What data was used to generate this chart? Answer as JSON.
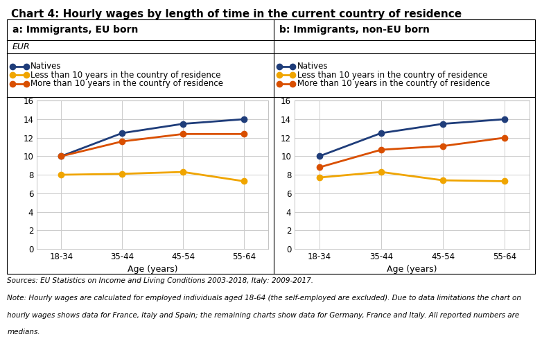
{
  "title": "Chart 4: Hourly wages by length of time in the current country of residence",
  "subtitle_left": "a: Immigrants, EU born",
  "subtitle_right": "b: Immigrants, non-EU born",
  "ylabel": "EUR",
  "xlabel": "Age (years)",
  "x_labels": [
    "18-34",
    "35-44",
    "45-54",
    "55-64"
  ],
  "ylim": [
    0,
    16
  ],
  "yticks": [
    0,
    2,
    4,
    6,
    8,
    10,
    12,
    14,
    16
  ],
  "panel_a": {
    "natives": [
      10.0,
      12.5,
      13.5,
      14.0
    ],
    "less_10": [
      8.0,
      8.1,
      8.3,
      7.3
    ],
    "more_10": [
      10.0,
      11.6,
      12.4,
      12.4
    ]
  },
  "panel_b": {
    "natives": [
      10.0,
      12.5,
      13.5,
      14.0
    ],
    "less_10": [
      7.7,
      8.3,
      7.4,
      7.3
    ],
    "more_10": [
      8.8,
      10.7,
      11.1,
      12.0
    ]
  },
  "colors": {
    "natives": "#1f3d7a",
    "less_10": "#f0a500",
    "more_10": "#d94f00"
  },
  "legend_labels": [
    "Natives",
    "Less than 10 years in the country of residence",
    "More than 10 years in the country of residence"
  ],
  "source_text_line1": "Sources: EU Statistics on Income and Living Conditions 2003-2018, Italy: 2009-2017.",
  "source_text_line2": "Note: Hourly wages are calculated for employed individuals aged 18-64 (the self-employed are excluded). Due to data limitations the chart on",
  "source_text_line3": "hourly wages shows data for France, Italy and Spain; the remaining charts show data for Germany, France and Italy. All reported numbers are",
  "source_text_line4": "medians.",
  "marker": "o",
  "marker_size": 6,
  "linewidth": 2.0,
  "grid_color": "#cccccc",
  "background_color": "#ffffff",
  "border_color": "#000000"
}
